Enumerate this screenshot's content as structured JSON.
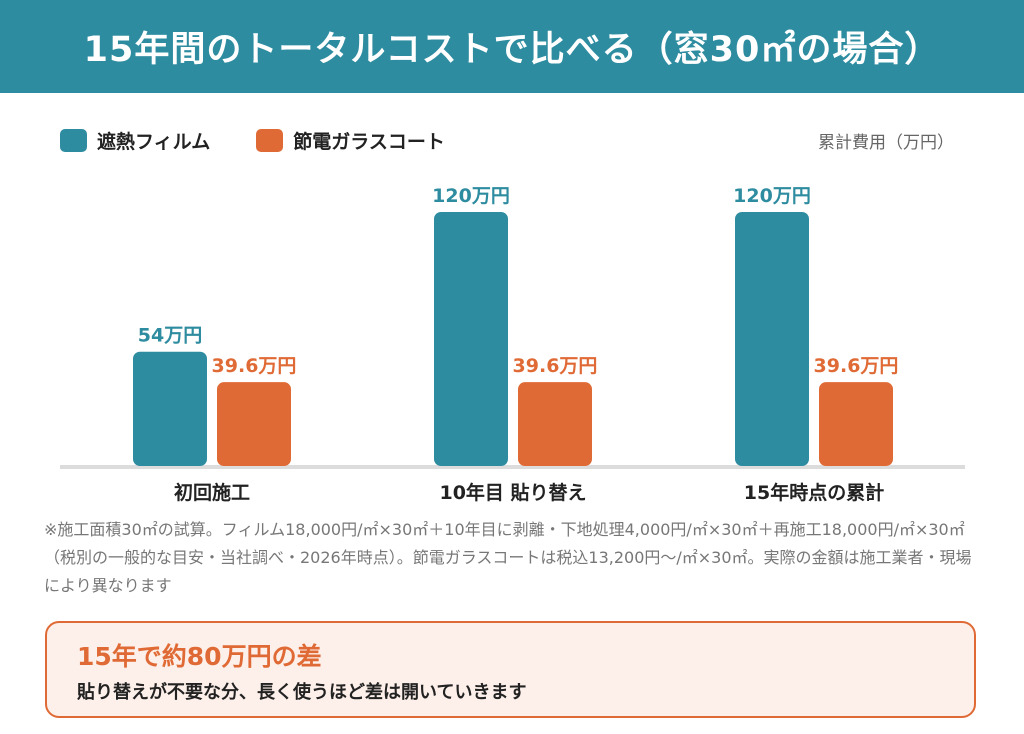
{
  "title": "15年間のトータルコストで比べる（窓30㎡の場合）",
  "legend": [
    {
      "label": "遮熱フィルム",
      "color": "#2e8ca0"
    },
    {
      "label": "節電ガラスコート",
      "color": "#e06a35"
    }
  ],
  "unit_label": "累計費用（万円）",
  "chart_data": {
    "type": "bar",
    "categories": [
      "初回施工",
      "10年目 貼り替え",
      "15年時点の累計"
    ],
    "series": [
      {
        "name": "遮熱フィルム",
        "values": [
          54,
          120,
          120
        ],
        "labels": [
          "54万円",
          "120万円",
          "120万円"
        ],
        "color": "#2e8ca0"
      },
      {
        "name": "節電ガラスコート",
        "values": [
          39.6,
          39.6,
          39.6
        ],
        "labels": [
          "39.6万円",
          "39.6万円",
          "39.6万円"
        ],
        "color": "#e06a35"
      }
    ],
    "ylabel": "累計費用（万円）",
    "ylim": [
      0,
      120
    ],
    "grid": false
  },
  "note": "※施工面積30㎡の試算。フィルム18,000円/㎡×30㎡＋10年目に剥離・下地処理4,000円/㎡×30㎡＋再施工18,000円/㎡×30㎡（税別の一般的な目安・当社調べ・2026年時点）。節電ガラスコートは税込13,200円〜/㎡×30㎡。実際の金額は施工業者・現場により異なります",
  "callout": {
    "title": "15年で約80万円の差",
    "body": "貼り替えが不要な分、長く使うほど差は開いていきます"
  }
}
